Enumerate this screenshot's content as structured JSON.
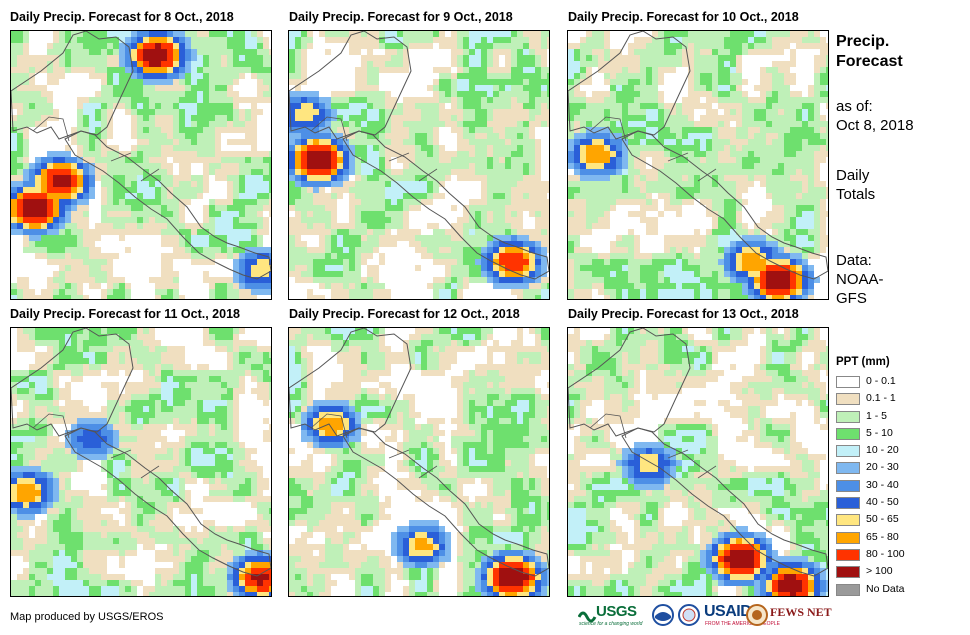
{
  "panels": [
    {
      "title": "Daily Precip. Forecast for 8 Oct., 2018"
    },
    {
      "title": "Daily Precip. Forecast for 9 Oct., 2018"
    },
    {
      "title": "Daily Precip. Forecast for 10 Oct., 2018"
    },
    {
      "title": "Daily Precip. Forecast for 11 Oct., 2018"
    },
    {
      "title": "Daily Precip. Forecast for 12 Oct., 2018"
    },
    {
      "title": "Daily Precip. Forecast for 13 Oct., 2018"
    }
  ],
  "sidebar": {
    "title_line1": "Precip.",
    "title_line2": "Forecast",
    "asof_line1": "as of:",
    "asof_line2": "Oct 8, 2018",
    "daily_line1": "Daily",
    "daily_line2": "Totals",
    "data_line1": "Data:",
    "data_line2": "NOAA-",
    "data_line3": "GFS"
  },
  "legend": {
    "title": "PPT (mm)",
    "items": [
      {
        "label": "0 - 0.1",
        "color": "#ffffff"
      },
      {
        "label": "0.1 - 1",
        "color": "#f0dfc0"
      },
      {
        "label": "1 - 5",
        "color": "#bff0b8"
      },
      {
        "label": "5 - 10",
        "color": "#6ee06e"
      },
      {
        "label": "10 - 20",
        "color": "#c2f0f8"
      },
      {
        "label": "20 - 30",
        "color": "#7fb8f0"
      },
      {
        "label": "30 - 40",
        "color": "#4d8fe6"
      },
      {
        "label": "40 - 50",
        "color": "#2a5fd8"
      },
      {
        "label": "50 - 65",
        "color": "#ffe680"
      },
      {
        "label": "65 - 80",
        "color": "#ffa500"
      },
      {
        "label": "80 - 100",
        "color": "#ff3300"
      },
      {
        "label": "> 100",
        "color": "#a01010"
      },
      {
        "label": "No Data",
        "color": "#9a9a9a"
      }
    ]
  },
  "credit": "Map produced by USGS/EROS",
  "logos": {
    "usgs": "USGS",
    "usgs_tagline": "science for a changing world",
    "usaid": "USAID",
    "usaid_tagline": "FROM THE AMERICAN PEOPLE",
    "fewsnet": "FEWS NET"
  }
}
